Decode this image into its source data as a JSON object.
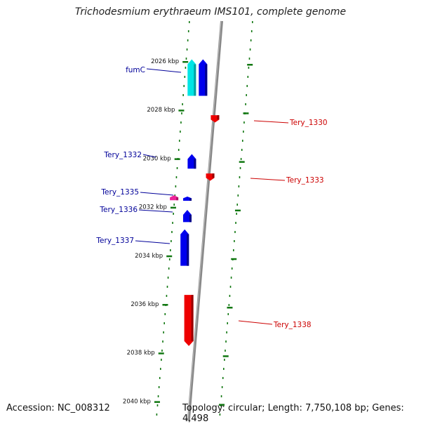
{
  "title": "Trichodesmium erythraeum IMS101, complete genome",
  "accession": "Accession: NC_008312",
  "summary": "Topology: circular; Length: 7,750,108 bp; Genes: 4,498",
  "colors": {
    "forward_gene": "#0000ee",
    "reverse_gene": "#ee0000",
    "highlight_gene": "#00e5e5",
    "pink_gene": "#ee2299",
    "forward_label": "#000099",
    "reverse_label": "#cc0000",
    "tick": "#117711",
    "axis": "#888888"
  },
  "scale": {
    "unit": "kbp",
    "start": 2025.7,
    "end": 2040.2
  },
  "ticks": [
    {
      "kbp": 2026,
      "label": "2026 kbp"
    },
    {
      "kbp": 2028,
      "label": "2028 kbp"
    },
    {
      "kbp": 2030,
      "label": "2030 kbp"
    },
    {
      "kbp": 2032,
      "label": "2032 kbp"
    },
    {
      "kbp": 2034,
      "label": "2034 kbp"
    },
    {
      "kbp": 2036,
      "label": "2036 kbp"
    },
    {
      "kbp": 2038,
      "label": "2038 kbp"
    },
    {
      "kbp": 2040,
      "label": "2040 kbp"
    }
  ],
  "genes": [
    {
      "name": "fumC",
      "label": "fumC",
      "strand": "+",
      "start": 2025.9,
      "end": 2027.4,
      "color": "highlight"
    },
    {
      "name": "fumC-neighbor",
      "label": "",
      "strand": "+",
      "start": 2025.9,
      "end": 2027.4,
      "color": "forward",
      "lane": 2
    },
    {
      "name": "tery-1330",
      "label": "Tery_1330",
      "strand": "-",
      "start": 2028.2,
      "end": 2028.5,
      "color": "reverse"
    },
    {
      "name": "tery-1332",
      "label": "Tery_1332",
      "strand": "+",
      "start": 2029.8,
      "end": 2030.4,
      "color": "forward"
    },
    {
      "name": "tery-1333",
      "label": "Tery_1333",
      "strand": "-",
      "start": 2030.6,
      "end": 2030.9,
      "color": "reverse"
    },
    {
      "name": "tery-1335",
      "label": "Tery_1335",
      "strand": "+",
      "start": 2031.5,
      "end": 2031.7,
      "color": "pink"
    },
    {
      "name": "tery-1335-small",
      "label": "",
      "strand": "+",
      "start": 2031.55,
      "end": 2031.7,
      "color": "forward",
      "lane": 2
    },
    {
      "name": "tery-1336",
      "label": "Tery_1336",
      "strand": "+",
      "start": 2032.1,
      "end": 2032.6,
      "color": "forward"
    },
    {
      "name": "tery-1337",
      "label": "Tery_1337",
      "strand": "+",
      "start": 2032.9,
      "end": 2034.4,
      "color": "forward"
    },
    {
      "name": "tery-1338",
      "label": "Tery_1338",
      "strand": "-",
      "start": 2035.6,
      "end": 2037.7,
      "color": "reverse"
    }
  ]
}
